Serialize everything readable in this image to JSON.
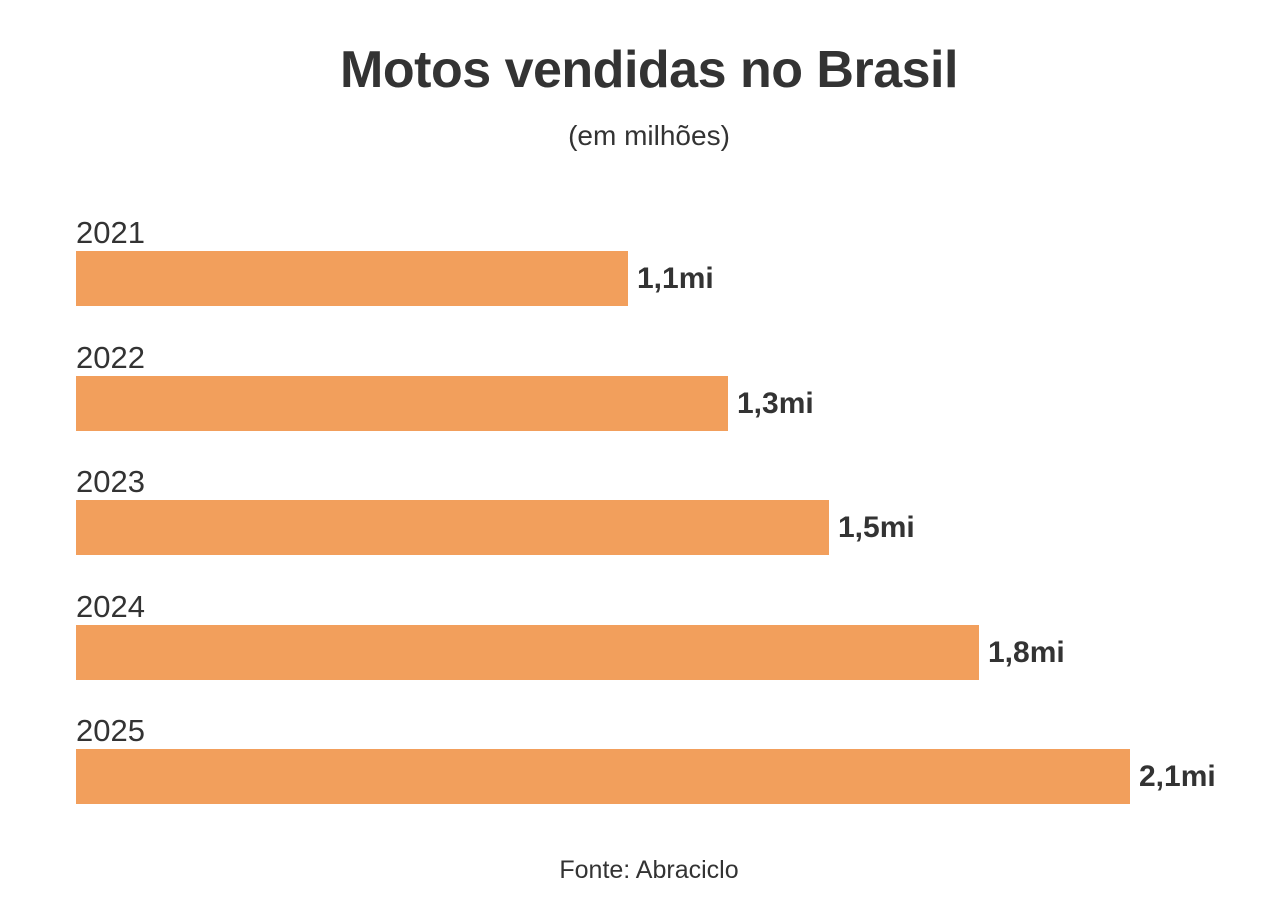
{
  "chart_data": {
    "type": "bar",
    "orientation": "horizontal",
    "title": "Motos vendidas no Brasil",
    "subtitle": "(em milhões)",
    "categories": [
      "2021",
      "2022",
      "2023",
      "2024",
      "2025"
    ],
    "values": [
      1.1,
      1.3,
      1.5,
      1.8,
      2.1
    ],
    "labels": [
      "1,1mi",
      "1,3mi",
      "1,5mi",
      "1,8mi",
      "2,1mi"
    ],
    "xlabel": "",
    "ylabel": "",
    "unit": "milhões",
    "grid": false,
    "legend": null,
    "source": "Fonte: Abraciclo",
    "bar_color": "#F29F5C"
  },
  "header": {
    "title": "Motos vendidas no Brasil",
    "subtitle": "(em milhões)"
  },
  "footer": {
    "source": "Fonte: Abraciclo"
  }
}
